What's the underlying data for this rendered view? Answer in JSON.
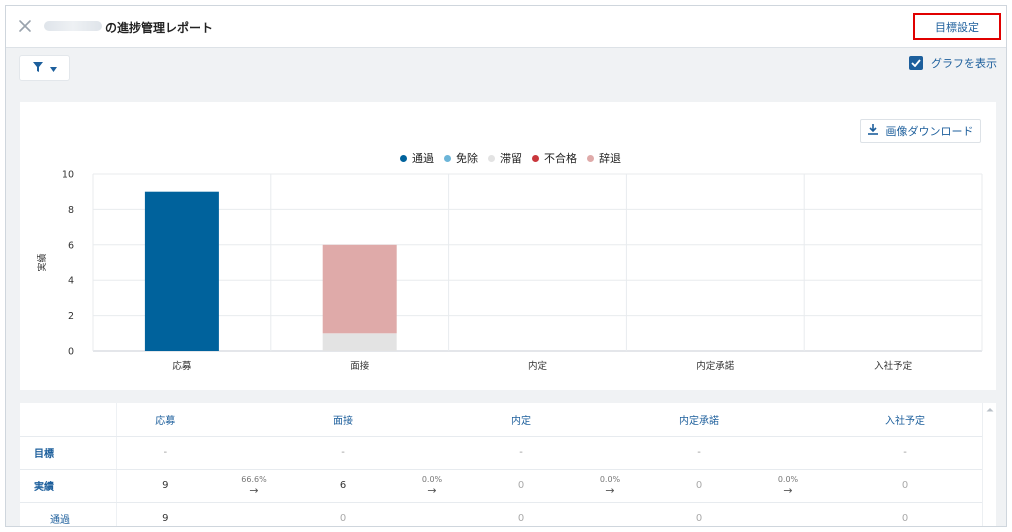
{
  "header": {
    "title_suffix": "の進捗管理レポート",
    "goal_button": "目標設定"
  },
  "toolbar": {
    "show_graph_label": "グラフを表示",
    "show_graph_checked": true
  },
  "chart_download": "画像ダウンロード",
  "chart_data": {
    "type": "bar",
    "stacked": true,
    "categories": [
      "応募",
      "面接",
      "内定",
      "内定承諾",
      "入社予定"
    ],
    "series": [
      {
        "name": "通過",
        "color": "#00629c",
        "values": [
          9,
          0,
          0,
          0,
          0
        ]
      },
      {
        "name": "免除",
        "color": "#6cb5d8",
        "values": [
          0,
          0,
          0,
          0,
          0
        ]
      },
      {
        "name": "滞留",
        "color": "#e3e3e3",
        "values": [
          0,
          1,
          0,
          0,
          0
        ]
      },
      {
        "name": "不合格",
        "color": "#c9373c",
        "values": [
          0,
          0,
          0,
          0,
          0
        ]
      },
      {
        "name": "辞退",
        "color": "#dfaaa9",
        "values": [
          0,
          5,
          0,
          0,
          0
        ]
      }
    ],
    "ylabel": "実績",
    "ylim": [
      0,
      10
    ],
    "yticks": [
      "0",
      "2",
      "4",
      "6",
      "8",
      "10"
    ],
    "grid": true,
    "legend_position": "top-center"
  },
  "table": {
    "columns": [
      "応募",
      "面接",
      "内定",
      "内定承諾",
      "入社予定"
    ],
    "rows": [
      {
        "label": "目標",
        "cells": [
          "-",
          "-",
          "-",
          "-",
          "-"
        ],
        "rates": [
          "",
          "",
          "",
          ""
        ]
      },
      {
        "label": "実績",
        "cells": [
          "9",
          "6",
          "0",
          "0",
          "0"
        ],
        "rates": [
          "66.6%",
          "0.0%",
          "0.0%",
          "0.0%"
        ]
      },
      {
        "label": "通過",
        "cells": [
          "9",
          "0",
          "0",
          "0",
          "0"
        ],
        "rates": [
          "",
          "",
          "",
          ""
        ]
      }
    ],
    "arrow": "→"
  }
}
